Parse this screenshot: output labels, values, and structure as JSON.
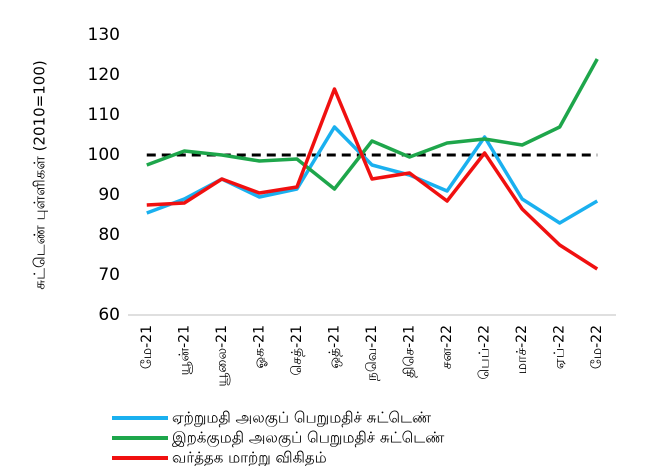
{
  "chart_data": {
    "type": "line",
    "y_label": "சுட்டெண் புள்ளிகள் (2010=100)",
    "categories": [
      "மே-21",
      "யூன்-21",
      "யூலை-21",
      "ஓக-21",
      "செத்-21",
      "ஒத்-21",
      "நவெ-21",
      "திசெ-21",
      "சன-22",
      "பெப்-22",
      "மாச்-22",
      "ஏப்-22",
      "மே-22"
    ],
    "series": [
      {
        "name": "ஏற்றுமதி அலகுப் பெறுமதிச் சுட்டெண்",
        "color": "#1ab0ef",
        "values": [
          85.5,
          89,
          94,
          89.5,
          91.5,
          107,
          97.5,
          95,
          91,
          104.5,
          89,
          83,
          88.5
        ]
      },
      {
        "name": "இறக்குமதி அலகுப் பெறுமதிச் சுட்டெண்",
        "color": "#1ea64b",
        "values": [
          97.5,
          101,
          100,
          98.5,
          99,
          91.5,
          103.5,
          99.5,
          103,
          104,
          102.5,
          107,
          124
        ]
      },
      {
        "name": "வர்த்தக மாற்று விகிதம்",
        "color": "#f01010",
        "values": [
          87.5,
          88,
          94,
          90.5,
          92,
          116.5,
          94,
          95.5,
          88.5,
          100.5,
          86.5,
          77.5,
          71.5
        ]
      }
    ],
    "reference_line": {
      "value": 100,
      "color": "#000000",
      "dashed": true
    },
    "ylim": [
      60,
      130
    ],
    "yticks": [
      60,
      70,
      80,
      90,
      100,
      110,
      120,
      130
    ],
    "grid": false,
    "legend": "bottom"
  }
}
